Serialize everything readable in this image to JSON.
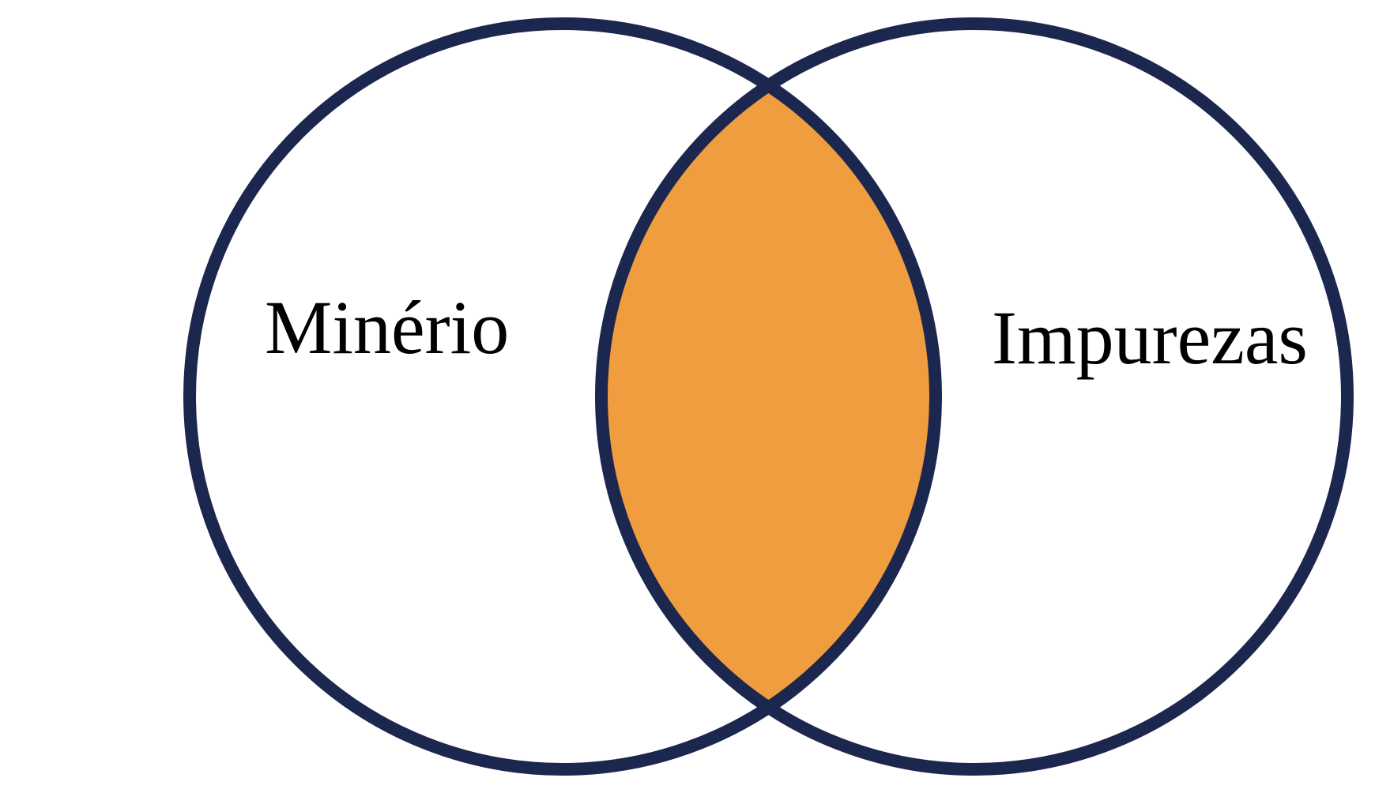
{
  "diagram": {
    "type": "venn",
    "sets": [
      {
        "id": "left",
        "label": "Minério"
      },
      {
        "id": "right",
        "label": "Impurezas"
      }
    ],
    "intersection": {
      "sets": [
        "left",
        "right"
      ],
      "highlighted": true
    }
  },
  "colors": {
    "circle_stroke": "#1c2750",
    "intersection_fill": "#ef9d3e",
    "background": "#ffffff",
    "text": "#000000"
  }
}
